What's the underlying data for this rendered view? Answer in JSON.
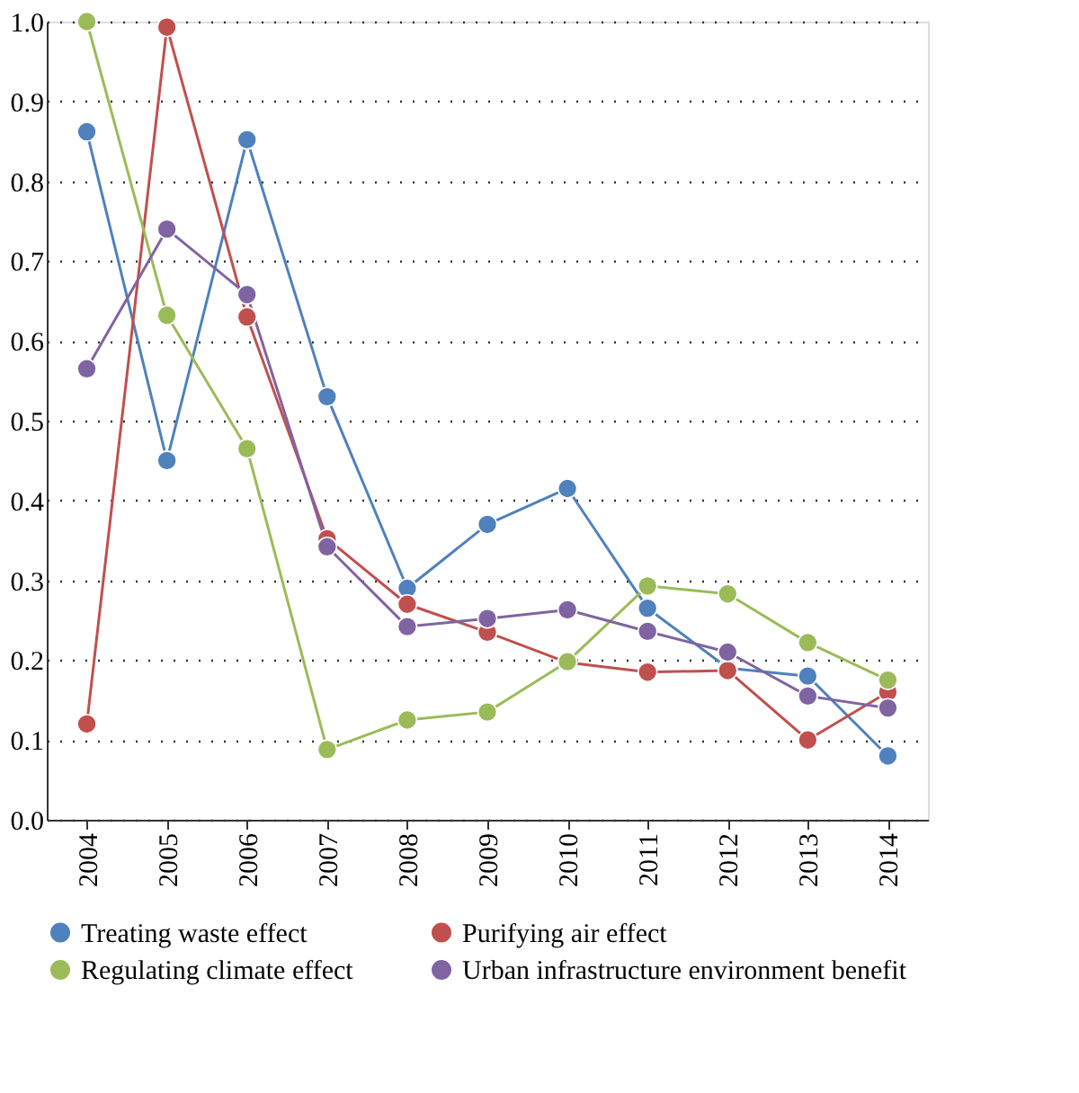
{
  "chart_data": {
    "type": "line",
    "categories": [
      "2004",
      "2005",
      "2006",
      "2007",
      "2008",
      "2009",
      "2010",
      "2011",
      "2012",
      "2013",
      "2014"
    ],
    "series": [
      {
        "name": "Treating waste effect",
        "color": "#4f81bd",
        "values": [
          0.862,
          0.45,
          0.852,
          0.53,
          0.29,
          0.37,
          0.415,
          0.265,
          0.19,
          0.18,
          0.08
        ]
      },
      {
        "name": "Purifying air effect",
        "color": "#c0504d",
        "values": [
          0.12,
          0.993,
          0.63,
          0.352,
          0.27,
          0.235,
          0.197,
          0.185,
          0.187,
          0.1,
          0.16
        ]
      },
      {
        "name": "Regulating climate effect",
        "color": "#9bbb59",
        "values": [
          1.0,
          0.632,
          0.465,
          0.088,
          0.125,
          0.135,
          0.198,
          0.293,
          0.283,
          0.222,
          0.175
        ]
      },
      {
        "name": "Urban infrastructure environment benefit",
        "color": "#8064a2",
        "values": [
          0.565,
          0.74,
          0.658,
          0.342,
          0.242,
          0.252,
          0.263,
          0.236,
          0.21,
          0.155,
          0.14
        ]
      }
    ],
    "ylim": [
      0,
      1.0
    ],
    "yticks": [
      {
        "value": 0,
        "label": "0.0"
      },
      0.1,
      0.2,
      0.3,
      0.4,
      0.5,
      0.6,
      0.7,
      0.8,
      0.9,
      {
        "value": 1,
        "label": "1.0"
      }
    ],
    "grid": "y",
    "legend": "bottom",
    "marker": "circle",
    "line_style": "solid"
  }
}
